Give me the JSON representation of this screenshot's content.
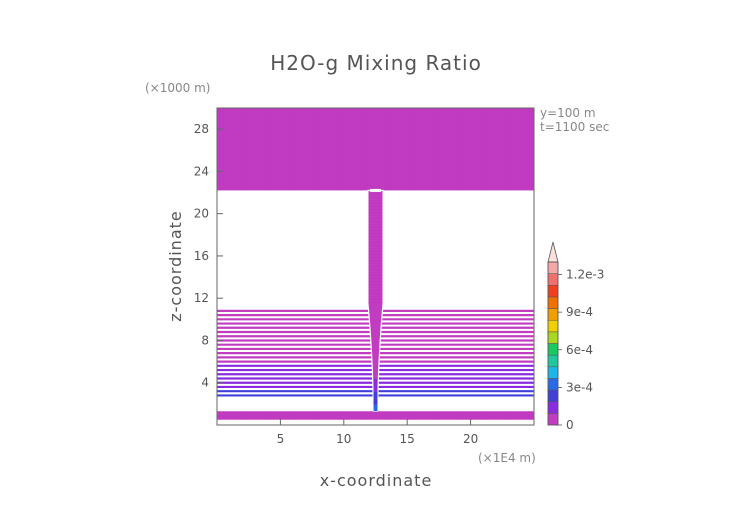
{
  "chart_data": {
    "type": "heatmap",
    "title": "H2O-g Mixing Ratio",
    "xlabel": "x-coordinate",
    "ylabel": "z-coordinate",
    "x_unit": "(×1E4 m)",
    "y_unit": "(×1000 m)",
    "annotations": [
      "y=100 m",
      "t=1100 sec"
    ],
    "xlim": [
      0,
      25
    ],
    "ylim": [
      0,
      30
    ],
    "x_ticks": [
      5,
      10,
      15,
      20
    ],
    "y_ticks": [
      4,
      8,
      12,
      16,
      20,
      24,
      28
    ],
    "colorbar": {
      "min": 0,
      "max": 0.0013,
      "tick_values": [
        0,
        0.0003,
        0.0006,
        0.0009,
        0.0012
      ],
      "tick_labels": [
        "0",
        "3e-4",
        "6e-4",
        "9e-4",
        "1.2e-3"
      ],
      "colors": [
        "#c23cc2",
        "#8a2be2",
        "#4040d8",
        "#2a6ae8",
        "#1cb6e8",
        "#20c8a0",
        "#18c860",
        "#a8d820",
        "#f0d000",
        "#f0a000",
        "#f07000",
        "#f04020",
        "#f07070",
        "#f4a8a8",
        "#fce0dc"
      ]
    },
    "regions": [
      {
        "kind": "band",
        "z": [
          22.2,
          30
        ],
        "value": 1e-05
      },
      {
        "kind": "band",
        "z": [
          0.5,
          1.3
        ],
        "value": 1e-05
      },
      {
        "kind": "lines",
        "z": [
          2.8,
          10.6
        ],
        "step": 0.4,
        "value_low": 0.0002,
        "value_high": 1e-05
      },
      {
        "kind": "column",
        "x": [
          11.9,
          13.1
        ],
        "z": [
          1.3,
          22.2
        ],
        "value": 2e-05
      },
      {
        "kind": "core",
        "x": 12.5,
        "z": [
          1.3,
          5.0
        ],
        "value": 0.0003
      }
    ]
  }
}
